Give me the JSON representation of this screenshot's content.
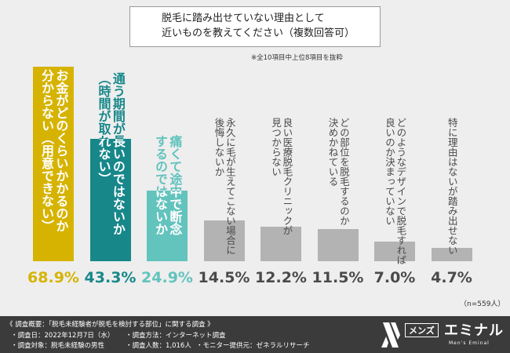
{
  "chart_data": {
    "type": "bar",
    "title": [
      "脱毛に踏み出せていない理由として",
      "近いものを教えてください（複数回答可）"
    ],
    "note": "※全10項目中上位8項目を抜粋",
    "categories": [
      [
        "お金がどのくらいかかるのか",
        "分からない（用意できない）"
      ],
      [
        "通う期間が長いのではないか",
        "（時間が取れない）"
      ],
      [
        "痛くて途中で断念",
        "するのではないか"
      ],
      [
        "永久に毛が生えてこない場合に",
        "後悔しないか"
      ],
      [
        "良い医療脱毛クリニックが",
        "見つからない"
      ],
      [
        "どの部位を脱毛するのか",
        "決めかねている"
      ],
      [
        "どのようなデザインで脱毛すれば",
        "良いのか決まっていない"
      ],
      [
        "特に理由はないが踏み出せない"
      ]
    ],
    "values": [
      68.9,
      43.3,
      24.9,
      14.5,
      12.2,
      11.5,
      7.0,
      4.7
    ],
    "value_labels": [
      "68.9%",
      "43.3%",
      "24.9%",
      "14.5%",
      "12.2%",
      "11.5%",
      "7.0%",
      "4.7%"
    ],
    "colors": [
      "#d6b300",
      "#17878a",
      "#63c3bd",
      "#b3b3b3",
      "#b3b3b3",
      "#b3b3b3",
      "#b3b3b3",
      "#b3b3b3"
    ],
    "label_colors": [
      "#d6b300",
      "#17878a",
      "#63c3bd",
      "#4a4a4a",
      "#4a4a4a",
      "#4a4a4a",
      "#4a4a4a",
      "#4a4a4a"
    ],
    "ylim": [
      0,
      70
    ],
    "sample": "（n=559人）"
  },
  "footer": {
    "heading": "《 調査概要：「脱毛未経験者が脱毛を検討する部位」に関する調査 》",
    "items": [
      "・調査日：2022年12月7日（水）",
      "・調査方法：インターネット調査",
      "・調査対象：脱毛未経験の男性",
      "・調査人数：1,016人",
      "・モニター提供元：ゼネラルリサーチ"
    ]
  },
  "logo": {
    "badge": "メンズ",
    "name": "エミナル",
    "sub": "Men's Eminal"
  }
}
